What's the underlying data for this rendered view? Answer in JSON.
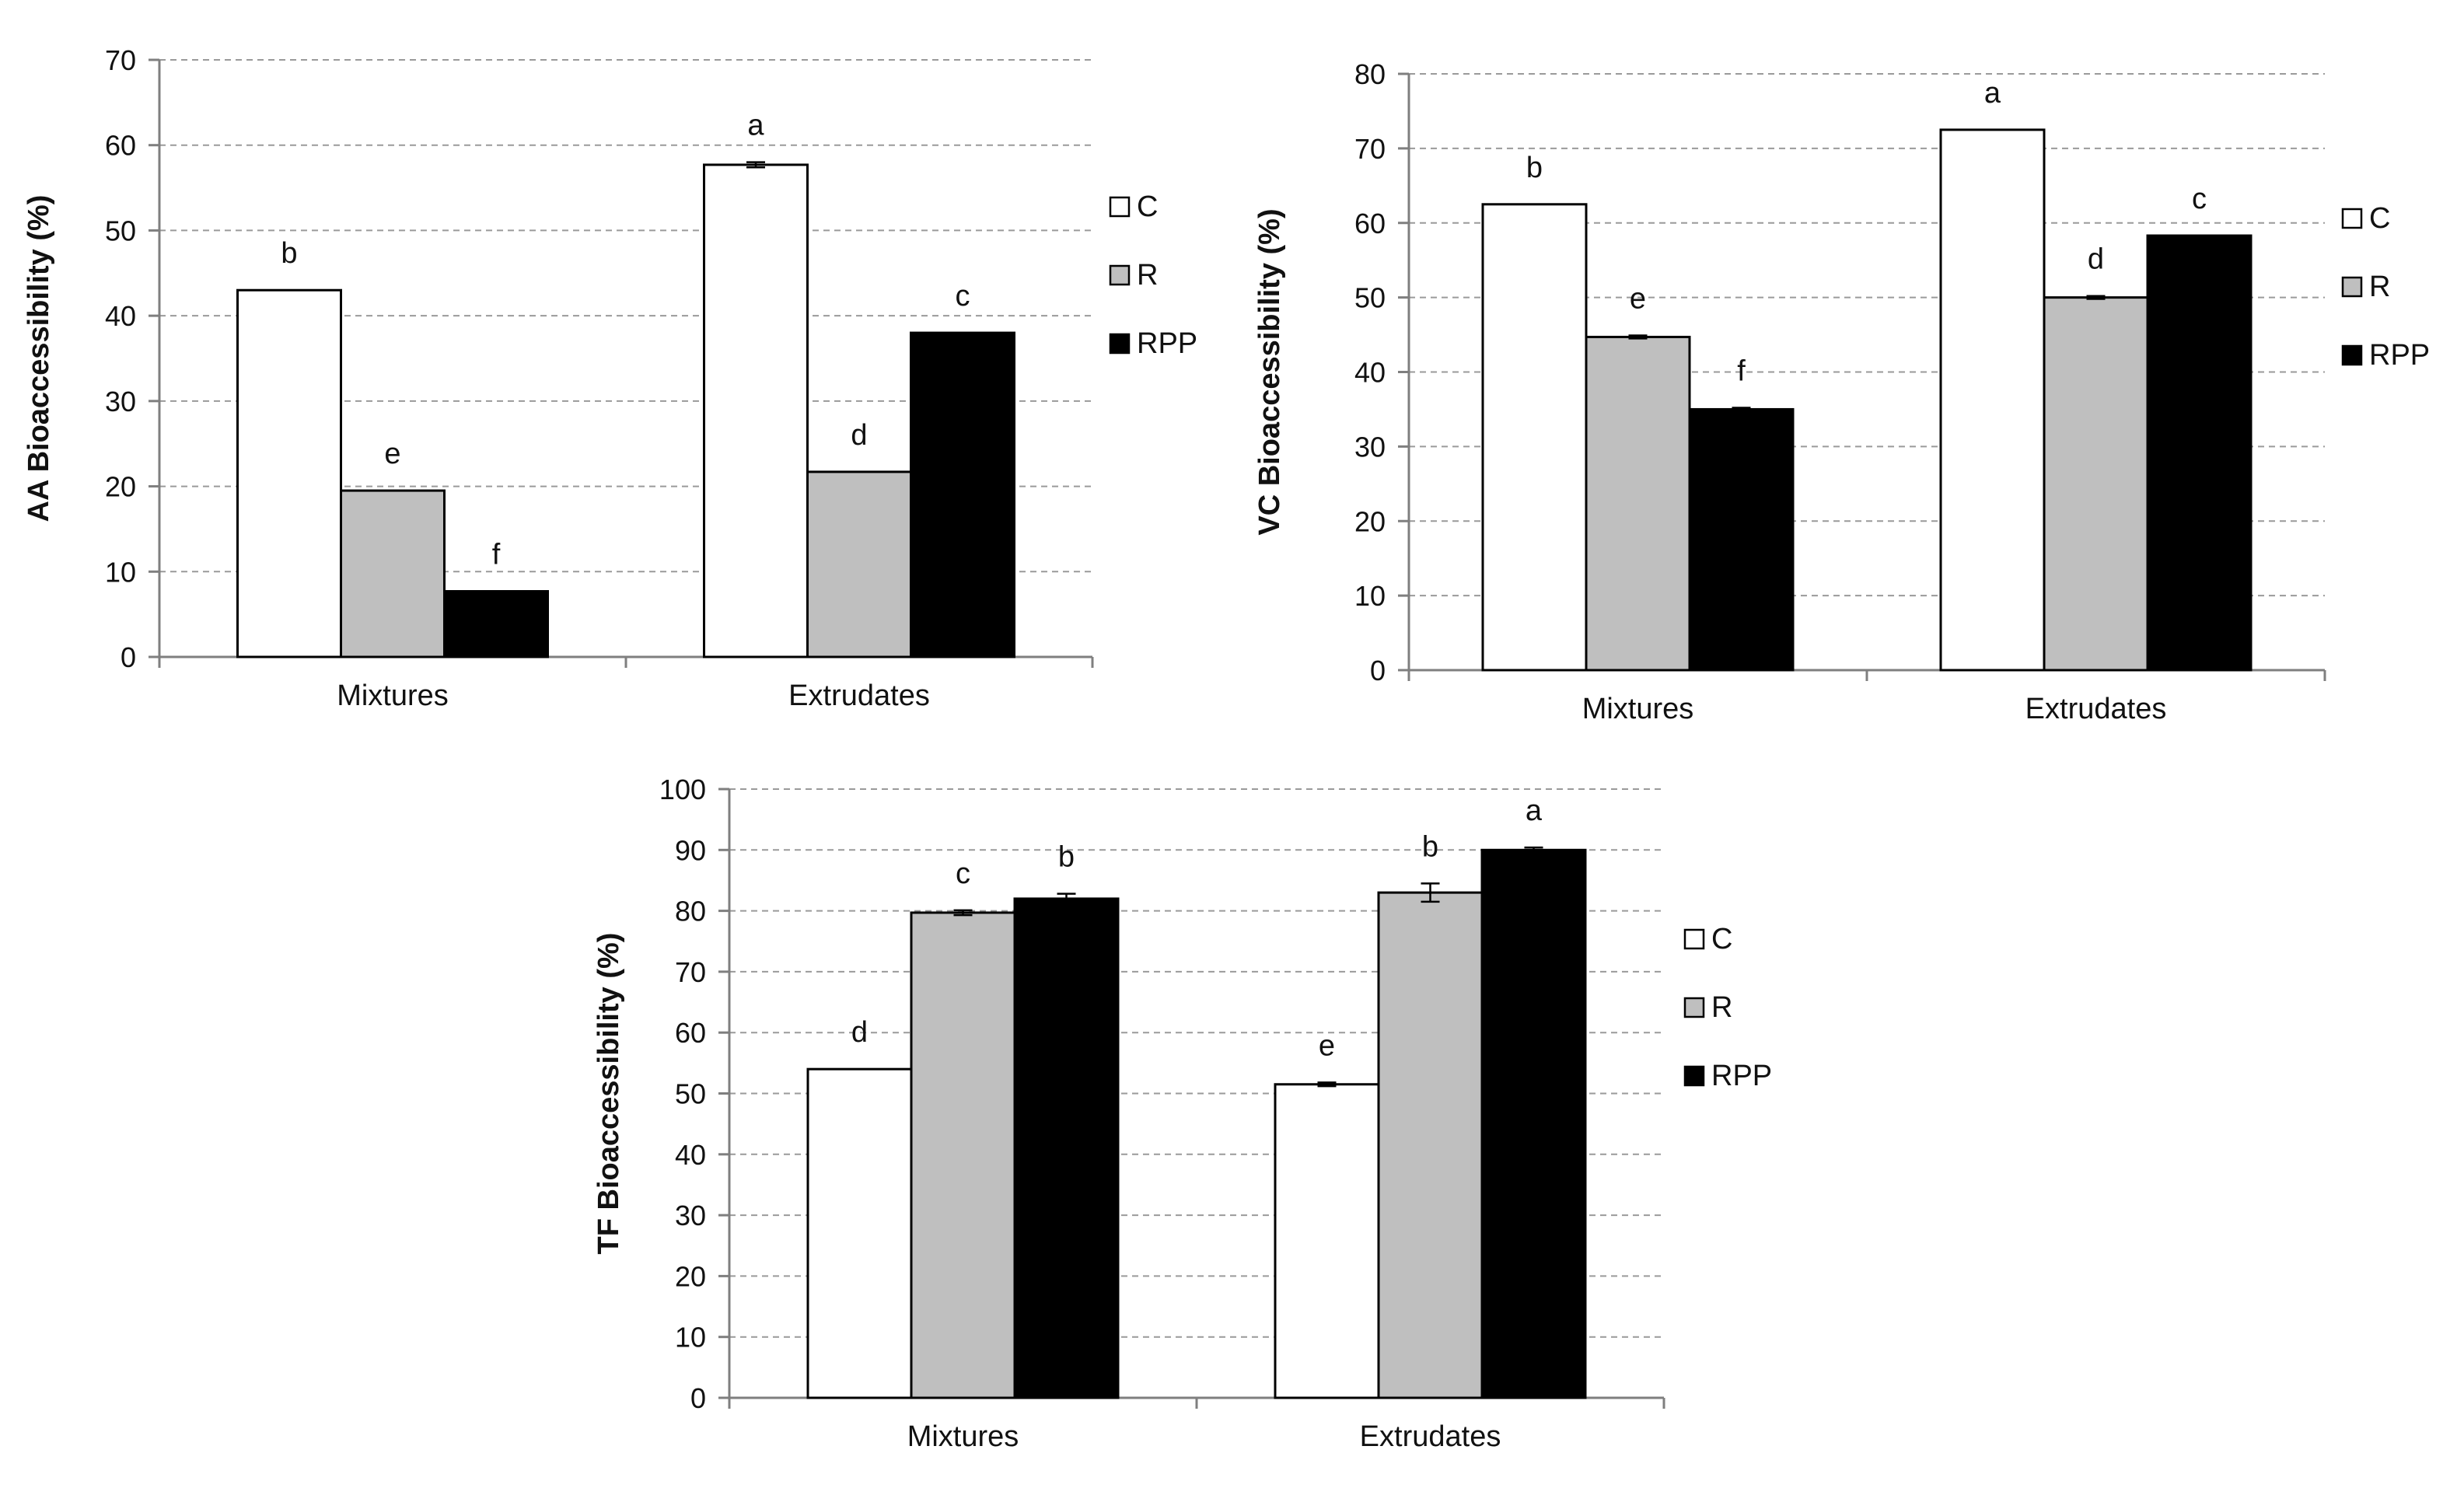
{
  "chart_data": [
    {
      "type": "bar",
      "ylabel": "AA Bioaccessibility (%)",
      "xlabel": "",
      "categories": [
        "Mixtures",
        "Extrudates"
      ],
      "ylim": [
        0,
        70
      ],
      "yticks": [
        0,
        10,
        20,
        30,
        40,
        50,
        60,
        70
      ],
      "grid": true,
      "legend_position": "right",
      "series": [
        {
          "name": "C",
          "color": "#ffffff",
          "values": [
            43,
            57.7
          ],
          "errors": [
            0,
            0.3
          ],
          "letters": [
            "b",
            "a"
          ]
        },
        {
          "name": "R",
          "color": "#bfbfbf",
          "values": [
            19.5,
            21.7
          ],
          "errors": [
            0,
            0
          ],
          "letters": [
            "e",
            "d"
          ]
        },
        {
          "name": "RPP",
          "color": "#000000",
          "values": [
            7.7,
            38
          ],
          "errors": [
            0,
            0
          ],
          "letters": [
            "f",
            "c"
          ]
        }
      ]
    },
    {
      "type": "bar",
      "ylabel": "VC Bioaccessibility (%)",
      "xlabel": "",
      "categories": [
        "Mixtures",
        "Extrudates"
      ],
      "ylim": [
        0,
        80
      ],
      "yticks": [
        0,
        10,
        20,
        30,
        40,
        50,
        60,
        70,
        80
      ],
      "grid": true,
      "legend_position": "right",
      "series": [
        {
          "name": "C",
          "color": "#ffffff",
          "values": [
            62.5,
            72.5
          ],
          "errors": [
            0,
            0
          ],
          "letters": [
            "b",
            "a"
          ]
        },
        {
          "name": "R",
          "color": "#bfbfbf",
          "values": [
            44.7,
            50
          ],
          "errors": [
            0.2,
            0.2
          ],
          "letters": [
            "e",
            "d"
          ]
        },
        {
          "name": "RPP",
          "color": "#000000",
          "values": [
            35,
            58.3
          ],
          "errors": [
            0.2,
            0
          ],
          "letters": [
            "f",
            "c"
          ]
        }
      ]
    },
    {
      "type": "bar",
      "ylabel": "TF Bioaccessibility (%)",
      "xlabel": "",
      "categories": [
        "Mixtures",
        "Extrudates"
      ],
      "ylim": [
        0,
        100
      ],
      "yticks": [
        0,
        10,
        20,
        30,
        40,
        50,
        60,
        70,
        80,
        90,
        100
      ],
      "grid": true,
      "legend_position": "right",
      "series": [
        {
          "name": "C",
          "color": "#ffffff",
          "values": [
            54,
            51.5
          ],
          "errors": [
            0,
            0.3
          ],
          "letters": [
            "d",
            "e"
          ]
        },
        {
          "name": "R",
          "color": "#bfbfbf",
          "values": [
            79.7,
            83
          ],
          "errors": [
            0.4,
            1.5
          ],
          "letters": [
            "c",
            "b"
          ]
        },
        {
          "name": "RPP",
          "color": "#000000",
          "values": [
            82,
            90
          ],
          "errors": [
            0.8,
            0.4
          ],
          "letters": [
            "b",
            "a"
          ]
        }
      ]
    }
  ]
}
